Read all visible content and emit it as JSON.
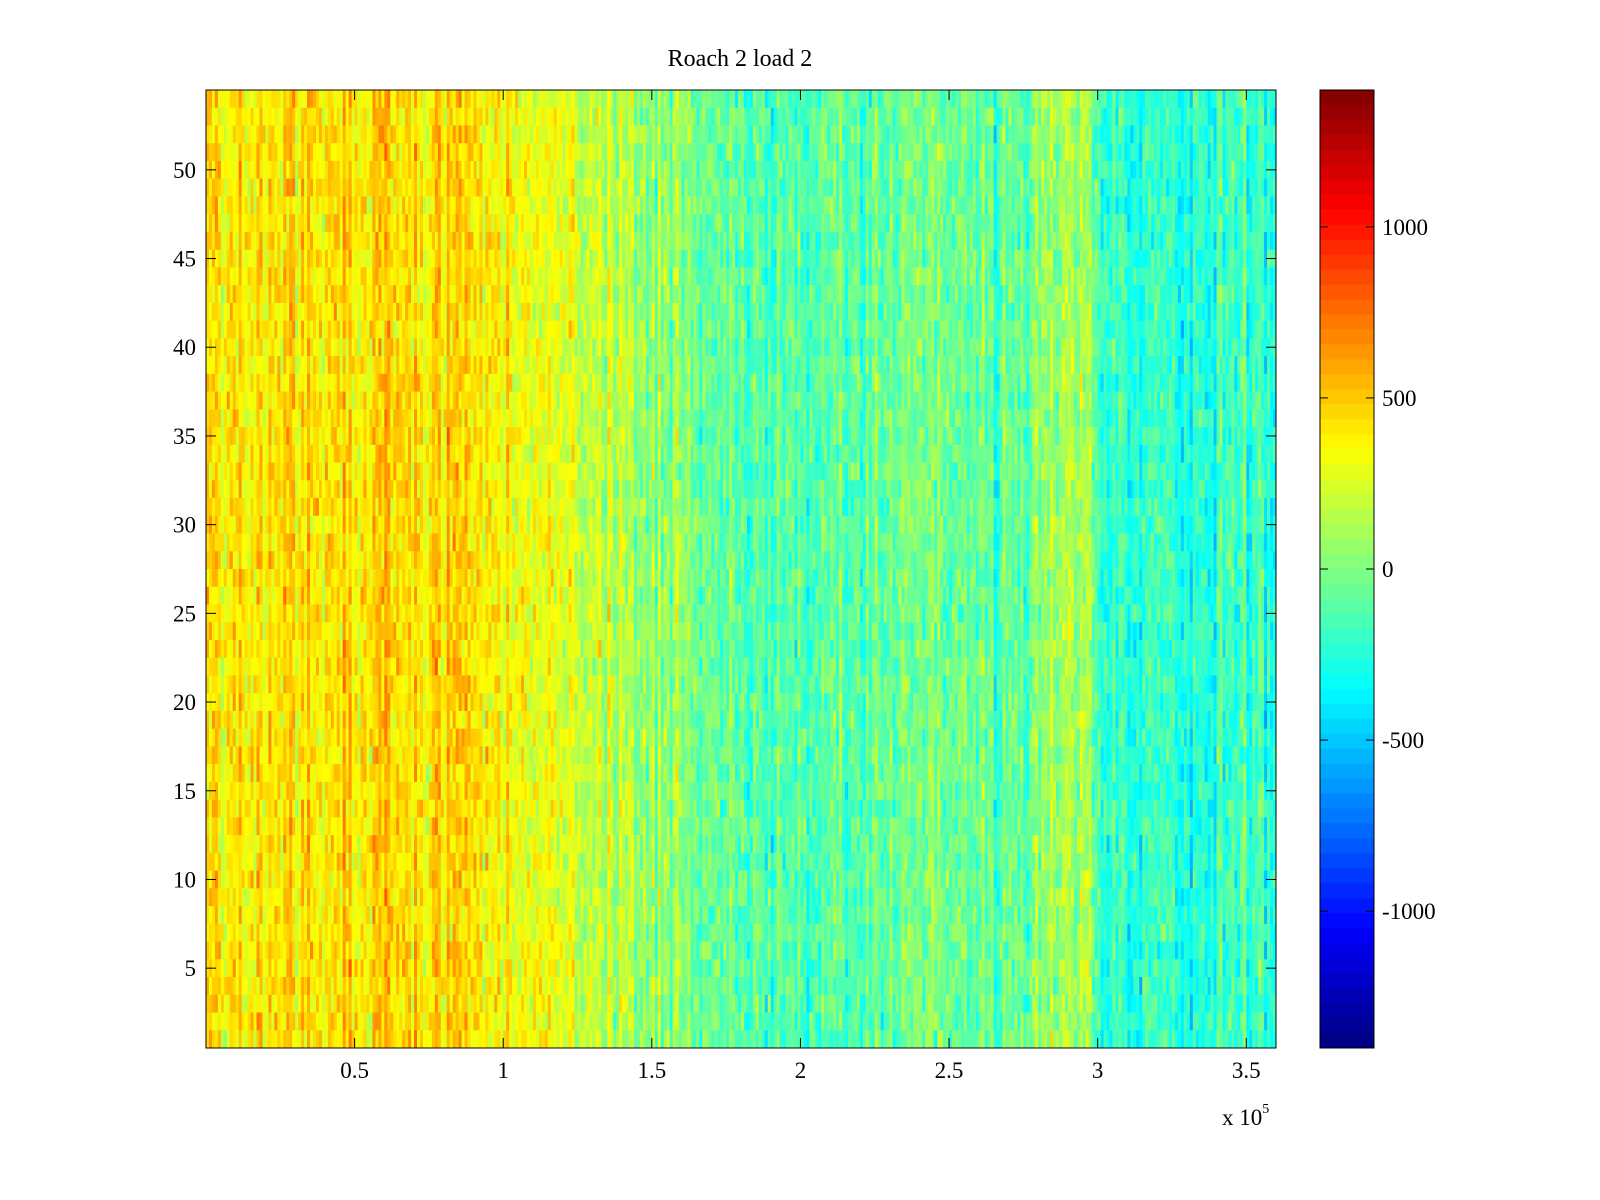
{
  "chart_data": {
    "type": "heatmap",
    "title": "Roach 2 load 2",
    "xlabel": "",
    "ylabel": "",
    "x_exponent_label": "x 10",
    "x_exponent_power": "5",
    "xlim": [
      0,
      360000
    ],
    "ylim": [
      0.5,
      54.5
    ],
    "x_ticks": [
      {
        "value": 0.5,
        "label": "0.5"
      },
      {
        "value": 1,
        "label": "1"
      },
      {
        "value": 1.5,
        "label": "1.5"
      },
      {
        "value": 2,
        "label": "2"
      },
      {
        "value": 2.5,
        "label": "2.5"
      },
      {
        "value": 3,
        "label": "3"
      },
      {
        "value": 3.5,
        "label": "3.5"
      }
    ],
    "y_ticks": [
      {
        "value": 5,
        "label": "5"
      },
      {
        "value": 10,
        "label": "10"
      },
      {
        "value": 15,
        "label": "15"
      },
      {
        "value": 20,
        "label": "20"
      },
      {
        "value": 25,
        "label": "25"
      },
      {
        "value": 30,
        "label": "30"
      },
      {
        "value": 35,
        "label": "35"
      },
      {
        "value": 40,
        "label": "40"
      },
      {
        "value": 45,
        "label": "45"
      },
      {
        "value": 50,
        "label": "50"
      }
    ],
    "rows": 54,
    "colormap": "jet",
    "colorbar": {
      "range": [
        -1400,
        1400
      ],
      "ticks": [
        {
          "value": 1000,
          "label": "1000"
        },
        {
          "value": 500,
          "label": "500"
        },
        {
          "value": 0,
          "label": "0"
        },
        {
          "value": -500,
          "label": "-500"
        },
        {
          "value": -1000,
          "label": "-1000"
        }
      ]
    },
    "column_mean_profile": [
      {
        "x": 0.0,
        "value": 380
      },
      {
        "x": 0.3,
        "value": 380
      },
      {
        "x": 0.6,
        "value": 470
      },
      {
        "x": 0.85,
        "value": 430
      },
      {
        "x": 1.0,
        "value": 330
      },
      {
        "x": 1.2,
        "value": 260
      },
      {
        "x": 1.35,
        "value": 200
      },
      {
        "x": 1.5,
        "value": 60
      },
      {
        "x": 1.8,
        "value": -70
      },
      {
        "x": 2.0,
        "value": -120
      },
      {
        "x": 2.2,
        "value": -60
      },
      {
        "x": 2.5,
        "value": -40
      },
      {
        "x": 2.7,
        "value": -70
      },
      {
        "x": 2.95,
        "value": 150
      },
      {
        "x": 3.05,
        "value": -250
      },
      {
        "x": 3.3,
        "value": -210
      },
      {
        "x": 3.6,
        "value": -190
      }
    ],
    "noise_amplitude": 230
  }
}
